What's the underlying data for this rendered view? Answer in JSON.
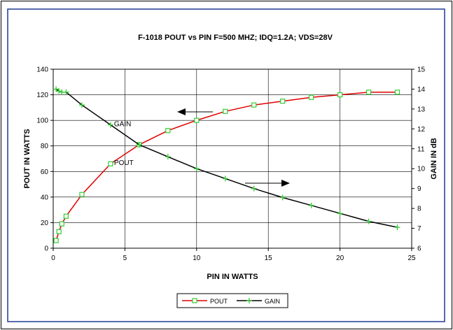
{
  "chart_data": {
    "type": "line",
    "title": "F-1018 POUT  vs PIN F=500 MHZ; IDQ=1.2A; VDS=28V",
    "xlabel": "PIN IN WATTS",
    "ylabel": "POUT IN WATTS",
    "y2label": "GAIN IN dB",
    "xlim": [
      0,
      25
    ],
    "ylim": [
      0,
      140
    ],
    "y2lim": [
      6,
      15
    ],
    "x_ticks": [
      0,
      5,
      10,
      15,
      20,
      25
    ],
    "y_ticks": [
      0,
      20,
      40,
      60,
      80,
      100,
      120,
      140
    ],
    "y2_ticks": [
      6,
      7,
      8,
      9,
      10,
      11,
      12,
      13,
      14,
      15
    ],
    "grid": true,
    "legend_position": "bottom-center",
    "series": [
      {
        "name": "POUT",
        "axis": "left",
        "color": "#e00000",
        "marker": "square",
        "marker_color": "#33cc33",
        "x": [
          0.2,
          0.4,
          0.6,
          0.9,
          2,
          4,
          6,
          8,
          10,
          12,
          14,
          16,
          18,
          20,
          22,
          24
        ],
        "values": [
          6,
          13,
          19,
          25,
          42,
          66,
          81,
          92,
          100,
          107,
          112,
          115,
          118,
          120,
          122,
          122
        ]
      },
      {
        "name": "GAIN",
        "axis": "right",
        "color": "#000000",
        "marker": "plus",
        "marker_color": "#33cc33",
        "x": [
          0.2,
          0.4,
          0.6,
          0.9,
          2,
          4,
          6,
          8,
          10,
          12,
          14,
          16,
          18,
          20,
          22,
          24
        ],
        "values": [
          14.0,
          13.9,
          13.85,
          13.85,
          13.2,
          12.2,
          11.2,
          10.6,
          10.0,
          9.5,
          9.0,
          8.55,
          8.15,
          7.75,
          7.35,
          7.05
        ]
      }
    ],
    "annotations": [
      {
        "text": "GAIN",
        "x": 4,
        "y2": 12.25
      },
      {
        "text": "POUT",
        "x": 4,
        "y": 67
      }
    ]
  },
  "colors": {
    "frame_border": "#1f3a93",
    "pout_line": "#e00000",
    "gain_line": "#000000",
    "markers": "#33cc33"
  }
}
